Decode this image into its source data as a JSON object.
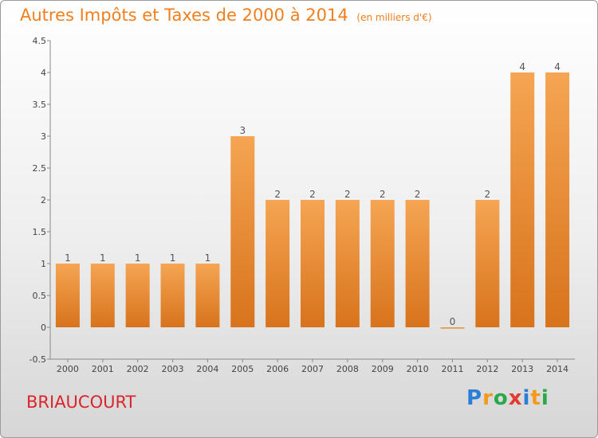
{
  "header": {
    "title": "Autres Impôts et Taxes de 2000 à 2014",
    "unit": "(en milliers d'€)"
  },
  "footer": {
    "place": "BRIAUCOURT",
    "brand_letters": [
      "P",
      "r",
      "o",
      "x",
      "i",
      "t",
      "i"
    ],
    "brand_colors": [
      "#2a7fd4",
      "#f39a1b",
      "#2aa84a",
      "#e33a2d",
      "#2a7fd4",
      "#f39a1b",
      "#2aa84a"
    ]
  },
  "chart_data": {
    "type": "bar",
    "categories": [
      "2000",
      "2001",
      "2002",
      "2003",
      "2004",
      "2005",
      "2006",
      "2007",
      "2008",
      "2009",
      "2010",
      "2011",
      "2012",
      "2013",
      "2014"
    ],
    "values": [
      1,
      1,
      1,
      1,
      1,
      3,
      2,
      2,
      2,
      2,
      2,
      0,
      2,
      4,
      4
    ],
    "data_labels": [
      "1",
      "1",
      "1",
      "1",
      "1",
      "3",
      "2",
      "2",
      "2",
      "2",
      "2",
      "0",
      "2",
      "4",
      "4"
    ],
    "yticks": [
      -0.5,
      0,
      0.5,
      1,
      1.5,
      2,
      2.5,
      3,
      3.5,
      4,
      4.5
    ],
    "ytick_labels": [
      "-0.5",
      "0",
      "0.5",
      "1",
      "1.5",
      "2",
      "2.5",
      "3",
      "3.5",
      "4",
      "4.5"
    ],
    "ylim": [
      -0.5,
      4.5
    ],
    "grid": false,
    "bar_color_top": "#f5a553",
    "bar_color_bottom": "#d8731c"
  }
}
